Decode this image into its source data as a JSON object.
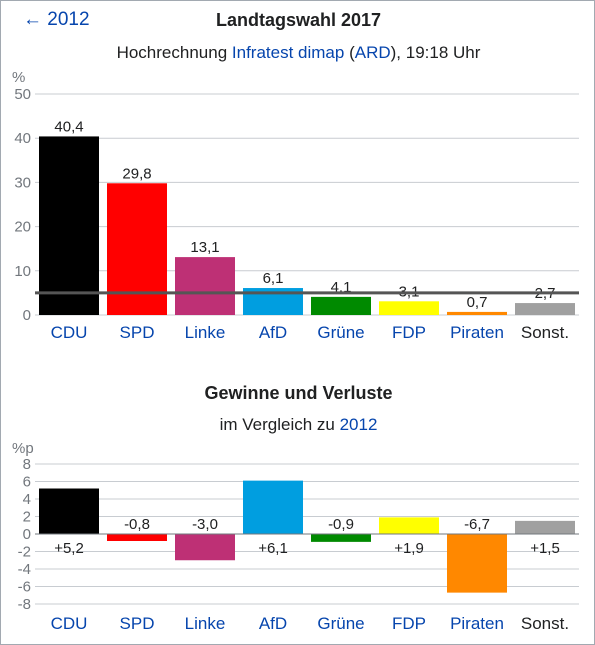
{
  "header": {
    "back_link": "← 2012",
    "title": "Landtagswahl 2017",
    "subtitle_pre": "Hochrechnung ",
    "subtitle_link1": "Infratest dimap",
    "subtitle_mid1": " (",
    "subtitle_link2": "ARD",
    "subtitle_post": "), 19:18 Uhr"
  },
  "section2": {
    "title": "Gewinne und Verluste",
    "subtitle_pre": "im Vergleich zu ",
    "subtitle_link": "2012"
  },
  "chart_data": [
    {
      "type": "bar",
      "ylabel": "%",
      "ylim": [
        0,
        50
      ],
      "yticks": [
        0,
        10,
        20,
        30,
        40,
        50
      ],
      "grid": true,
      "threshold": 5,
      "categories": [
        "CDU",
        "SPD",
        "Linke",
        "AfD",
        "Grüne",
        "FDP",
        "Piraten",
        "Sonst."
      ],
      "category_links": [
        true,
        true,
        true,
        true,
        true,
        true,
        true,
        false
      ],
      "values": [
        40.4,
        29.8,
        13.1,
        6.1,
        4.1,
        3.1,
        0.7,
        2.7
      ],
      "value_labels": [
        "40,4",
        "29,8",
        "13,1",
        "6,1",
        "4,1",
        "3,1",
        "0,7",
        "2,7"
      ],
      "colors": [
        "#000000",
        "#ff0000",
        "#be3075",
        "#009ee0",
        "#008a00",
        "#ffff00",
        "#ff8800",
        "#a0a0a0"
      ]
    },
    {
      "type": "bar",
      "ylabel": "%p",
      "ylim": [
        -8,
        8
      ],
      "yticks": [
        -8,
        -6,
        -4,
        -2,
        0,
        2,
        4,
        6,
        8
      ],
      "grid": true,
      "categories": [
        "CDU",
        "SPD",
        "Linke",
        "AfD",
        "Grüne",
        "FDP",
        "Piraten",
        "Sonst."
      ],
      "category_links": [
        true,
        true,
        true,
        true,
        true,
        true,
        true,
        false
      ],
      "values": [
        5.2,
        -0.8,
        -3.0,
        6.1,
        -0.9,
        1.9,
        -6.7,
        1.5
      ],
      "value_labels": [
        "+5,2",
        "-0,8",
        "-3,0",
        "+6,1",
        "-0,9",
        "+1,9",
        "-6,7",
        "+1,5"
      ],
      "colors": [
        "#000000",
        "#ff0000",
        "#be3075",
        "#009ee0",
        "#008a00",
        "#ffff00",
        "#ff8800",
        "#a0a0a0"
      ]
    }
  ]
}
